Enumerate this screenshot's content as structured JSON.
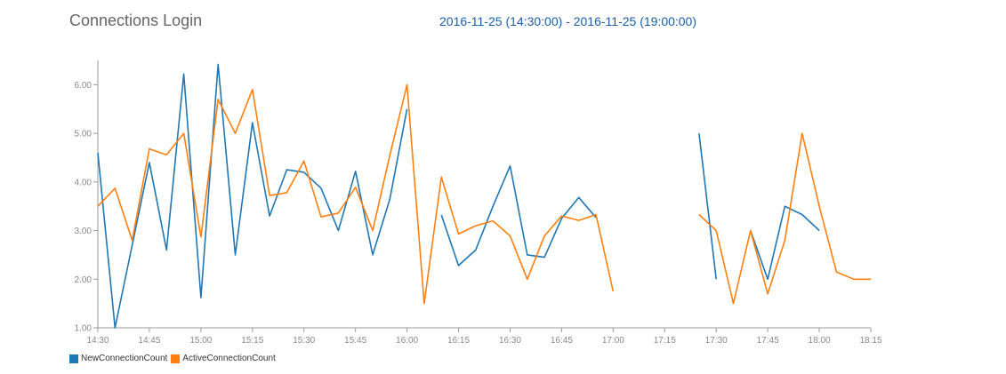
{
  "header": {
    "title": "Connections Login",
    "time_range": "2016-11-25 (14:30:00) - 2016-11-25 (19:00:00)"
  },
  "colors": {
    "new": "#1f77b4",
    "active": "#ff7f0e",
    "axis": "#999999"
  },
  "chart_data": {
    "type": "line",
    "title": "Connections Login",
    "xlabel": "",
    "ylabel": "",
    "x_ticks": [
      "14:30",
      "14:45",
      "15:00",
      "15:15",
      "15:30",
      "15:45",
      "16:00",
      "16:15",
      "16:30",
      "16:45",
      "17:00",
      "17:15",
      "17:30",
      "17:45",
      "18:00",
      "18:15"
    ],
    "y_ticks": [
      "1.00",
      "2.00",
      "3.00",
      "4.00",
      "5.00",
      "6.00"
    ],
    "ylim": [
      1.0,
      6.5
    ],
    "xlim": [
      "14:30",
      "18:15"
    ],
    "grid": false,
    "legend_position": "bottom-left",
    "series": [
      {
        "name": "NewConnectionCount",
        "color": "#1f77b4",
        "points": [
          [
            "14:30",
            4.6
          ],
          [
            "14:35",
            1.0
          ],
          [
            "14:40",
            2.7
          ],
          [
            "14:45",
            4.4
          ],
          [
            "14:50",
            2.6
          ],
          [
            "14:55",
            6.22
          ],
          [
            "15:00",
            1.62
          ],
          [
            "15:05",
            6.42
          ],
          [
            "15:10",
            2.5
          ],
          [
            "15:15",
            5.22
          ],
          [
            "15:20",
            3.3
          ],
          [
            "15:25",
            4.25
          ],
          [
            "15:30",
            4.2
          ],
          [
            "15:35",
            3.87
          ],
          [
            "15:40",
            3.0
          ],
          [
            "15:45",
            4.22
          ],
          [
            "15:50",
            2.5
          ],
          [
            "15:55",
            3.65
          ],
          [
            "16:00",
            5.5
          ],
          [
            "16:05",
            null
          ],
          [
            "16:10",
            3.32
          ],
          [
            "16:15",
            2.28
          ],
          [
            "16:20",
            2.6
          ],
          [
            "16:25",
            3.5
          ],
          [
            "16:30",
            4.33
          ],
          [
            "16:35",
            2.5
          ],
          [
            "16:40",
            2.45
          ],
          [
            "16:45",
            3.25
          ],
          [
            "16:50",
            3.68
          ],
          [
            "16:55",
            3.27
          ],
          [
            "17:00",
            null
          ],
          [
            "17:05",
            null
          ],
          [
            "17:10",
            null
          ],
          [
            "17:15",
            null
          ],
          [
            "17:20",
            null
          ],
          [
            "17:25",
            5.0
          ],
          [
            "17:30",
            2.0
          ],
          [
            "17:35",
            null
          ],
          [
            "17:40",
            3.0
          ],
          [
            "17:45",
            2.0
          ],
          [
            "17:50",
            3.5
          ],
          [
            "17:55",
            3.33
          ],
          [
            "18:00",
            3.0
          ]
        ]
      },
      {
        "name": "ActiveConnectionCount",
        "color": "#ff7f0e",
        "points": [
          [
            "14:30",
            3.5
          ],
          [
            "14:35",
            3.87
          ],
          [
            "14:40",
            2.8
          ],
          [
            "14:45",
            4.68
          ],
          [
            "14:50",
            4.56
          ],
          [
            "14:55",
            5.0
          ],
          [
            "15:00",
            2.87
          ],
          [
            "15:05",
            5.7
          ],
          [
            "15:10",
            5.0
          ],
          [
            "15:15",
            5.9
          ],
          [
            "15:20",
            3.72
          ],
          [
            "15:25",
            3.78
          ],
          [
            "15:30",
            4.43
          ],
          [
            "15:35",
            3.28
          ],
          [
            "15:40",
            3.36
          ],
          [
            "15:45",
            3.89
          ],
          [
            "15:50",
            3.0
          ],
          [
            "15:55",
            4.55
          ],
          [
            "16:00",
            6.0
          ],
          [
            "16:05",
            1.5
          ],
          [
            "16:10",
            4.1
          ],
          [
            "16:15",
            2.93
          ],
          [
            "16:20",
            3.1
          ],
          [
            "16:25",
            3.2
          ],
          [
            "16:30",
            2.89
          ],
          [
            "16:35",
            2.0
          ],
          [
            "16:40",
            2.89
          ],
          [
            "16:45",
            3.3
          ],
          [
            "16:50",
            3.21
          ],
          [
            "16:55",
            3.33
          ],
          [
            "17:00",
            1.75
          ],
          [
            "17:05",
            null
          ],
          [
            "17:10",
            null
          ],
          [
            "17:15",
            null
          ],
          [
            "17:20",
            null
          ],
          [
            "17:25",
            3.33
          ],
          [
            "17:30",
            3.0
          ],
          [
            "17:35",
            1.5
          ],
          [
            "17:40",
            3.0
          ],
          [
            "17:45",
            1.7
          ],
          [
            "17:50",
            2.8
          ],
          [
            "17:55",
            5.0
          ],
          [
            "18:00",
            3.5
          ],
          [
            "18:05",
            2.15
          ],
          [
            "18:10",
            2.0
          ],
          [
            "18:15",
            2.0
          ]
        ]
      }
    ]
  },
  "legend": {
    "items": [
      {
        "label": "NewConnectionCount",
        "color": "#1f77b4"
      },
      {
        "label": "ActiveConnectionCount",
        "color": "#ff7f0e"
      }
    ]
  }
}
